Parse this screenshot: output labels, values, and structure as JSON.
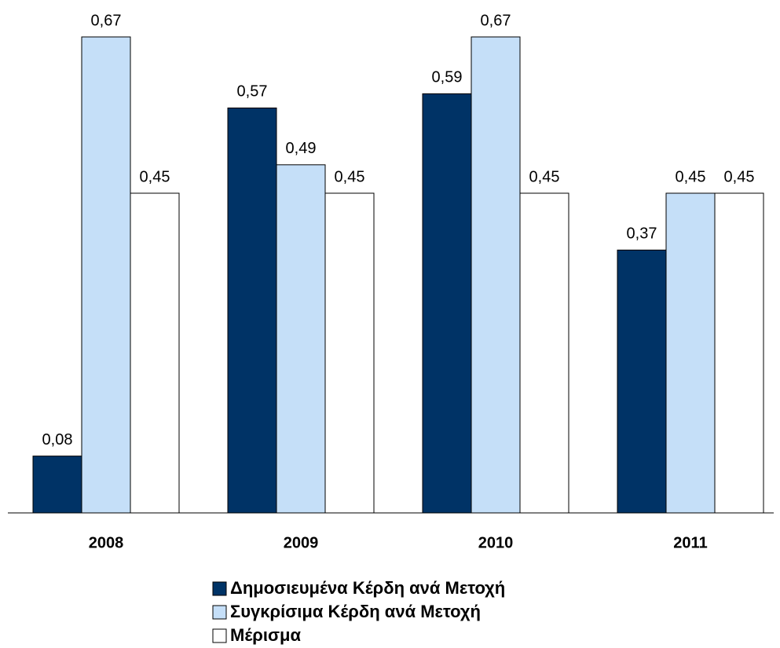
{
  "chart_data": {
    "type": "bar",
    "categories": [
      "2008",
      "2009",
      "2010",
      "2011"
    ],
    "series": [
      {
        "name": "Δημοσιευμένα Κέρδη ανά Μετοχή",
        "color": "#003366",
        "values": [
          0.08,
          0.57,
          0.59,
          0.37
        ],
        "value_labels": [
          "0,08",
          "0,57",
          "0,59",
          "0,37"
        ]
      },
      {
        "name": "Συγκρίσιμα Κέρδη ανά Μετοχή",
        "color": "#c5dff8",
        "values": [
          0.67,
          0.49,
          0.67,
          0.45
        ],
        "value_labels": [
          "0,67",
          "0,49",
          "0,67",
          "0,45"
        ]
      },
      {
        "name": "Μέρισμα",
        "color": "#ffffff",
        "values": [
          0.45,
          0.45,
          0.45,
          0.45
        ],
        "value_labels": [
          "0,45",
          "0,45",
          "0,45",
          "0,45"
        ]
      }
    ]
  }
}
